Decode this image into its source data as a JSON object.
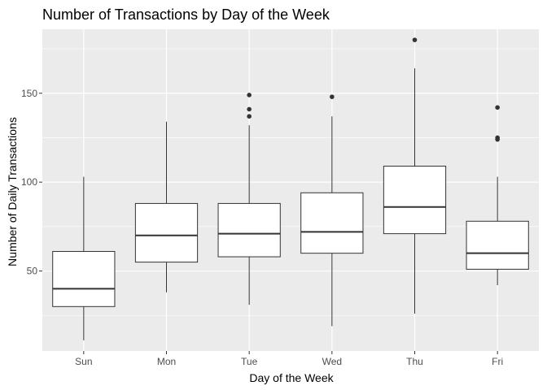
{
  "chart_data": {
    "type": "boxplot",
    "title": "Number of Transactions by Day of the Week",
    "xlabel": "Day of the Week",
    "ylabel": "Number of Daily Transactions",
    "categories": [
      "Sun",
      "Mon",
      "Tue",
      "Wed",
      "Thu",
      "Fri"
    ],
    "ylim": [
      5,
      186
    ],
    "yticks": [
      50,
      100,
      150
    ],
    "grid": true,
    "colors": {
      "panel": "#ebebeb",
      "grid_major": "#ffffff",
      "box_fill": "#ffffff",
      "box_line": "#333333",
      "outlier": "#333333"
    },
    "boxes": [
      {
        "name": "Sun",
        "whisker_low": 11,
        "q1": 30,
        "median": 40,
        "q3": 61,
        "whisker_high": 103,
        "outliers": []
      },
      {
        "name": "Mon",
        "whisker_low": 38,
        "q1": 55,
        "median": 70,
        "q3": 88,
        "whisker_high": 134,
        "outliers": []
      },
      {
        "name": "Tue",
        "whisker_low": 31,
        "q1": 58,
        "median": 71,
        "q3": 88,
        "whisker_high": 132,
        "outliers": [
          137,
          141,
          149
        ]
      },
      {
        "name": "Wed",
        "whisker_low": 19,
        "q1": 60,
        "median": 72,
        "q3": 94,
        "whisker_high": 137,
        "outliers": [
          148
        ]
      },
      {
        "name": "Thu",
        "whisker_low": 26,
        "q1": 71,
        "median": 86,
        "q3": 109,
        "whisker_high": 164,
        "outliers": [
          180
        ]
      },
      {
        "name": "Fri",
        "whisker_low": 42,
        "q1": 51,
        "median": 60,
        "q3": 78,
        "whisker_high": 103,
        "outliers": [
          124,
          125,
          142
        ]
      }
    ]
  }
}
